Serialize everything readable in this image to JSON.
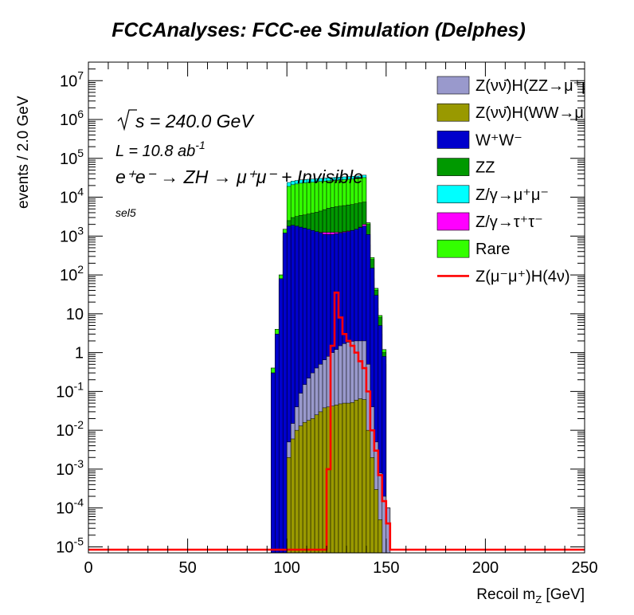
{
  "chart_data": {
    "type": "histogram",
    "title": "FCCAnalyses: FCC-ee Simulation (Delphes)",
    "xlabel": "Recoil m_{Z} [GeV]",
    "ylabel": "events / 2.0 GeV",
    "xlim": [
      0,
      250
    ],
    "ylim": [
      7e-06,
      30000000.0
    ],
    "log_y": true,
    "bin_width": 2.0,
    "stacked": true,
    "x_ticks": [
      "0",
      "50",
      "100",
      "150",
      "200",
      "250"
    ],
    "y_ticks": [
      {
        "base": "10",
        "exp": "-5"
      },
      {
        "base": "10",
        "exp": "-4"
      },
      {
        "base": "10",
        "exp": "-3"
      },
      {
        "base": "10",
        "exp": "-2"
      },
      {
        "base": "10",
        "exp": "-1"
      },
      {
        "base": "1",
        "exp": ""
      },
      {
        "base": "10",
        "exp": ""
      },
      {
        "base": "10",
        "exp": "2"
      },
      {
        "base": "10",
        "exp": "3"
      },
      {
        "base": "10",
        "exp": "4"
      },
      {
        "base": "10",
        "exp": "5"
      },
      {
        "base": "10",
        "exp": "6"
      },
      {
        "base": "10",
        "exp": "7"
      }
    ],
    "annotations": {
      "sqrt_s": "s = 240.0 GeV",
      "lumi": "L = 10.8 ab",
      "lumi_exp": "-1",
      "process": "e⁺e⁻ → ZH → μ⁺μ⁻ + Invisible",
      "selection": "sel5"
    },
    "bins_x_start": [
      92,
      94,
      96,
      98,
      100,
      102,
      104,
      106,
      108,
      110,
      112,
      114,
      116,
      118,
      120,
      122,
      124,
      126,
      128,
      130,
      132,
      134,
      136,
      138,
      140,
      142,
      144,
      146,
      148,
      150,
      152
    ],
    "stack": [
      {
        "name": "Z(νν̄)H(ZZ→μ⁺μ⁻νν̄)",
        "color": "#9999cc",
        "cumulative": [
          0,
          0,
          0,
          0,
          0.005,
          0.015,
          0.04,
          0.09,
          0.15,
          0.22,
          0.3,
          0.4,
          0.5,
          0.65,
          0.8,
          1.0,
          1.2,
          1.5,
          1.7,
          1.85,
          1.95,
          2.0,
          2.0,
          2.0,
          0.5,
          0.04,
          0.005,
          0.0008,
          0.0002,
          0.0001,
          0
        ]
      },
      {
        "name": "Z(νν̄)H(WW→μ⁺νμ⁻ν̄)",
        "color": "#999900",
        "cumulative": [
          0,
          0,
          0,
          0,
          0.002,
          0.006,
          0.01,
          0.013,
          0.016,
          0.018,
          0.02,
          0.025,
          0.03,
          0.038,
          0.04,
          0.042,
          0.045,
          0.048,
          0.05,
          0.05,
          0.052,
          0.06,
          0.065,
          0.062,
          0.01,
          0.002,
          0.0003,
          5e-05,
          0,
          0,
          0
        ]
      },
      {
        "name": "W⁺W⁻",
        "color": "#0000cc",
        "cumulative": [
          0.3,
          3,
          80,
          1200,
          1800,
          1900,
          1800,
          1700,
          1600,
          1500,
          1400,
          1300,
          1200,
          1100,
          1100,
          1100,
          1150,
          1200,
          1250,
          1300,
          1400,
          1500,
          1650,
          1800,
          1100,
          150,
          30,
          5,
          0.8,
          0.0001,
          0
        ]
      },
      {
        "name": "ZZ",
        "color": "#009900",
        "cumulative": [
          0.3,
          2.5,
          70,
          1000,
          2500,
          3000,
          3200,
          3400,
          3500,
          3700,
          3900,
          4100,
          4400,
          4800,
          5200,
          5500,
          5700,
          5900,
          6100,
          6300,
          6500,
          6800,
          7200,
          7500,
          2000,
          250,
          40,
          8,
          1,
          0.0001,
          0
        ]
      },
      {
        "name": "Z/γ→μ⁺μ⁻",
        "color": "#00ffff",
        "cumulative": [
          0.4,
          4,
          100,
          1500,
          24000,
          26000,
          27000,
          28000,
          28500,
          29000,
          29500,
          30000,
          30500,
          31000,
          31500,
          32000,
          32500,
          33000,
          33500,
          34000,
          34500,
          35000,
          35500,
          37000,
          2200,
          280,
          45,
          9,
          1.2,
          0.0001,
          0
        ]
      },
      {
        "name": "Z/γ→τ⁺τ⁻",
        "color": "#ff00ff",
        "cumulative": [
          0.3,
          2.5,
          60,
          750,
          1200,
          1250,
          1250,
          1250,
          1250,
          1250,
          1250,
          1250,
          1250,
          1250,
          1250,
          1250,
          1250,
          1250,
          1300,
          1350,
          1400,
          1500,
          1700,
          2000,
          600,
          80,
          14,
          3,
          0.5,
          0.0001,
          0
        ]
      },
      {
        "name": "Rare",
        "color": "#33ff00",
        "cumulative": [
          0.4,
          4,
          100,
          1500,
          19000,
          21000,
          22000,
          23000,
          23500,
          24000,
          24500,
          25000,
          25500,
          26000,
          26500,
          27000,
          27500,
          28000,
          28500,
          29000,
          29500,
          30000,
          30500,
          32000,
          2200,
          280,
          45,
          9,
          1.2,
          0.0001,
          0
        ]
      }
    ],
    "signal": {
      "name": "Z(μ⁻μ⁺)H(4ν)",
      "color": "#ff0000",
      "bins_x_start": [
        120,
        122,
        124,
        126,
        128,
        130,
        132,
        134,
        136,
        138,
        140,
        142,
        144,
        146,
        148,
        150,
        152
      ],
      "values": [
        0.001,
        1.5,
        35,
        8,
        3,
        2,
        1.5,
        1,
        0.6,
        0.4,
        0.1,
        0.01,
        0.003,
        0.0007,
        0.00015,
        4e-05,
        0
      ]
    },
    "legend": {
      "placement": "top-right",
      "entries": [
        {
          "label": "Z(νν̄)H(ZZ→μ⁺μ⁻νν̄)",
          "color": "#9999cc",
          "kind": "fill"
        },
        {
          "label": "Z(νν̄)H(WW→μ⁺νμ⁻ν̄)",
          "color": "#999900",
          "kind": "fill"
        },
        {
          "label": "W⁺W⁻",
          "color": "#0000cc",
          "kind": "fill"
        },
        {
          "label": "ZZ",
          "color": "#009900",
          "kind": "fill"
        },
        {
          "label": "Z/γ→μ⁺μ⁻",
          "color": "#00ffff",
          "kind": "fill"
        },
        {
          "label": "Z/γ→τ⁺τ⁻",
          "color": "#ff00ff",
          "kind": "fill"
        },
        {
          "label": "Rare",
          "color": "#33ff00",
          "kind": "fill"
        },
        {
          "label": "Z(μ⁻μ⁺)H(4ν)",
          "color": "#ff0000",
          "kind": "line"
        }
      ]
    }
  }
}
